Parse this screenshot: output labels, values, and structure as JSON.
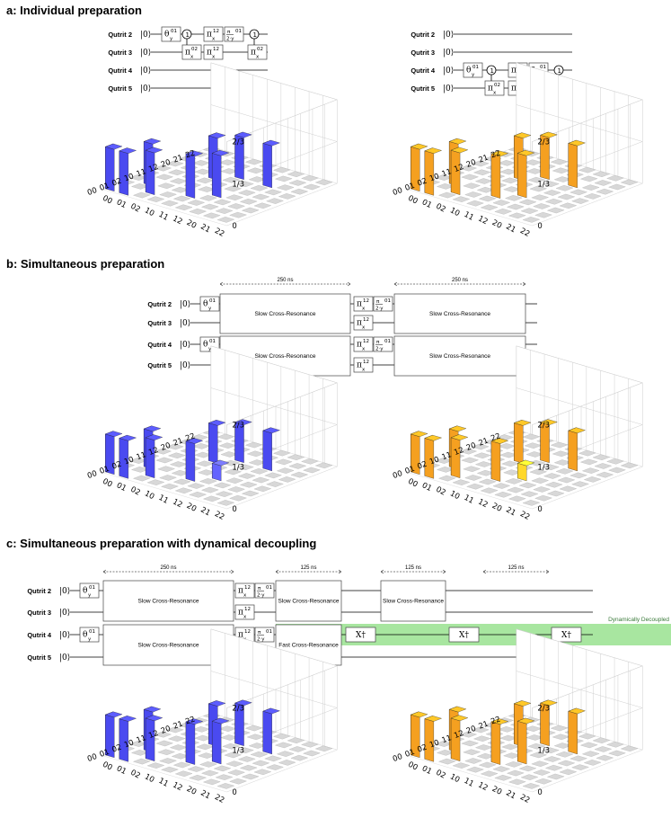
{
  "sections": [
    {
      "title": "a: Individual preparation"
    },
    {
      "title": "b: Simultaneous preparation"
    },
    {
      "title": "c: Simultaneous preparation with dynamical decoupling"
    }
  ],
  "qutrit_labels": [
    "Qutrit 2",
    "Qutrit 3",
    "Qutrit 4",
    "Qutrit 5"
  ],
  "ket": "|0⟩",
  "gates": {
    "theta": "θ",
    "pi": "π",
    "pi_over_2": "π/2",
    "xdag": "X†",
    "sub_y": "y",
    "sub_x": "x",
    "sup01": "01",
    "sup12": "12",
    "sup02": "02"
  },
  "durations": {
    "slow": "250 ns",
    "fast": "125 ns"
  },
  "blocks": {
    "slow": "Slow Cross-Resonance",
    "fast": "Fast Cross-Resonance",
    "dd": "Dynamically Decoupled"
  },
  "colors": {
    "blue": "#4a4af0",
    "orange": "#f5a020",
    "dd_band": "#a8e6a0"
  },
  "chart_data": [
    {
      "type": "bar3d",
      "panel": "a-left",
      "color": "blue",
      "axis_x": [
        "00",
        "01",
        "02",
        "10",
        "11",
        "12",
        "20",
        "21",
        "22"
      ],
      "axis_y": [
        "00",
        "01",
        "02",
        "10",
        "11",
        "12",
        "20",
        "21",
        "22"
      ],
      "zticks": [
        "0",
        "1/3",
        "2/3"
      ],
      "zlim": [
        0,
        0.6667
      ],
      "bars": [
        [
          0,
          0,
          0.333
        ],
        [
          1,
          0,
          0.333
        ],
        [
          2,
          1,
          0.333
        ],
        [
          1,
          2,
          0.333
        ],
        [
          4,
          2,
          0.333
        ],
        [
          5,
          3,
          0.333
        ],
        [
          3,
          5,
          0.333
        ],
        [
          4,
          6,
          0.333
        ],
        [
          6,
          6,
          0.333
        ]
      ]
    },
    {
      "type": "bar3d",
      "panel": "a-right",
      "color": "orange",
      "axis_x": [
        "00",
        "01",
        "02",
        "10",
        "11",
        "12",
        "20",
        "21",
        "22"
      ],
      "axis_y": [
        "00",
        "01",
        "02",
        "10",
        "11",
        "12",
        "20",
        "21",
        "22"
      ],
      "zticks": [
        "0",
        "1/3",
        "2/3"
      ],
      "zlim": [
        0,
        0.6667
      ],
      "bars": [
        [
          0,
          0,
          0.333
        ],
        [
          1,
          0,
          0.333
        ],
        [
          2,
          1,
          0.333
        ],
        [
          1,
          2,
          0.333
        ],
        [
          4,
          2,
          0.333
        ],
        [
          5,
          3,
          0.333
        ],
        [
          3,
          5,
          0.333
        ],
        [
          4,
          6,
          0.333
        ],
        [
          6,
          6,
          0.333
        ]
      ]
    },
    {
      "type": "bar3d",
      "panel": "b-left",
      "color": "blue",
      "axis_x": [
        "00",
        "01",
        "02",
        "10",
        "11",
        "12",
        "20",
        "21",
        "22"
      ],
      "axis_y": [
        "00",
        "01",
        "02",
        "10",
        "11",
        "12",
        "20",
        "21",
        "22"
      ],
      "zticks": [
        "0",
        "1/3",
        "2/3"
      ],
      "zlim": [
        0,
        0.6667
      ],
      "bars": [
        [
          0,
          0,
          0.3
        ],
        [
          1,
          0,
          0.3
        ],
        [
          2,
          1,
          0.3
        ],
        [
          1,
          2,
          0.3
        ],
        [
          4,
          2,
          0.3
        ],
        [
          5,
          3,
          0.12
        ],
        [
          3,
          5,
          0.3
        ],
        [
          4,
          6,
          0.3
        ],
        [
          6,
          6,
          0.3
        ]
      ]
    },
    {
      "type": "bar3d",
      "panel": "b-right",
      "color": "orange",
      "axis_x": [
        "00",
        "01",
        "02",
        "10",
        "11",
        "12",
        "20",
        "21",
        "22"
      ],
      "axis_y": [
        "00",
        "01",
        "02",
        "10",
        "11",
        "12",
        "20",
        "21",
        "22"
      ],
      "zticks": [
        "0",
        "1/3",
        "2/3"
      ],
      "zlim": [
        0,
        0.6667
      ],
      "bars": [
        [
          0,
          0,
          0.3
        ],
        [
          1,
          0,
          0.3
        ],
        [
          2,
          1,
          0.3
        ],
        [
          1,
          2,
          0.3
        ],
        [
          4,
          2,
          0.3
        ],
        [
          5,
          3,
          0.12
        ],
        [
          3,
          5,
          0.3
        ],
        [
          4,
          6,
          0.3
        ],
        [
          6,
          6,
          0.3
        ]
      ]
    },
    {
      "type": "bar3d",
      "panel": "c-left",
      "color": "blue",
      "axis_x": [
        "00",
        "01",
        "02",
        "10",
        "11",
        "12",
        "20",
        "21",
        "22"
      ],
      "axis_y": [
        "00",
        "01",
        "02",
        "10",
        "11",
        "12",
        "20",
        "21",
        "22"
      ],
      "zticks": [
        "0",
        "1/3",
        "2/3"
      ],
      "zlim": [
        0,
        0.6667
      ],
      "bars": [
        [
          0,
          0,
          0.32
        ],
        [
          1,
          0,
          0.32
        ],
        [
          2,
          1,
          0.32
        ],
        [
          1,
          2,
          0.32
        ],
        [
          4,
          2,
          0.32
        ],
        [
          5,
          3,
          0.32
        ],
        [
          3,
          5,
          0.32
        ],
        [
          4,
          6,
          0.32
        ],
        [
          6,
          6,
          0.32
        ]
      ]
    },
    {
      "type": "bar3d",
      "panel": "c-right",
      "color": "orange",
      "axis_x": [
        "00",
        "01",
        "02",
        "10",
        "11",
        "12",
        "20",
        "21",
        "22"
      ],
      "axis_y": [
        "00",
        "01",
        "02",
        "10",
        "11",
        "12",
        "20",
        "21",
        "22"
      ],
      "zticks": [
        "0",
        "1/3",
        "2/3"
      ],
      "zlim": [
        0,
        0.6667
      ],
      "bars": [
        [
          0,
          0,
          0.32
        ],
        [
          1,
          0,
          0.32
        ],
        [
          2,
          1,
          0.32
        ],
        [
          1,
          2,
          0.32
        ],
        [
          4,
          2,
          0.32
        ],
        [
          5,
          3,
          0.32
        ],
        [
          3,
          5,
          0.32
        ],
        [
          4,
          6,
          0.32
        ],
        [
          6,
          6,
          0.32
        ]
      ]
    }
  ]
}
